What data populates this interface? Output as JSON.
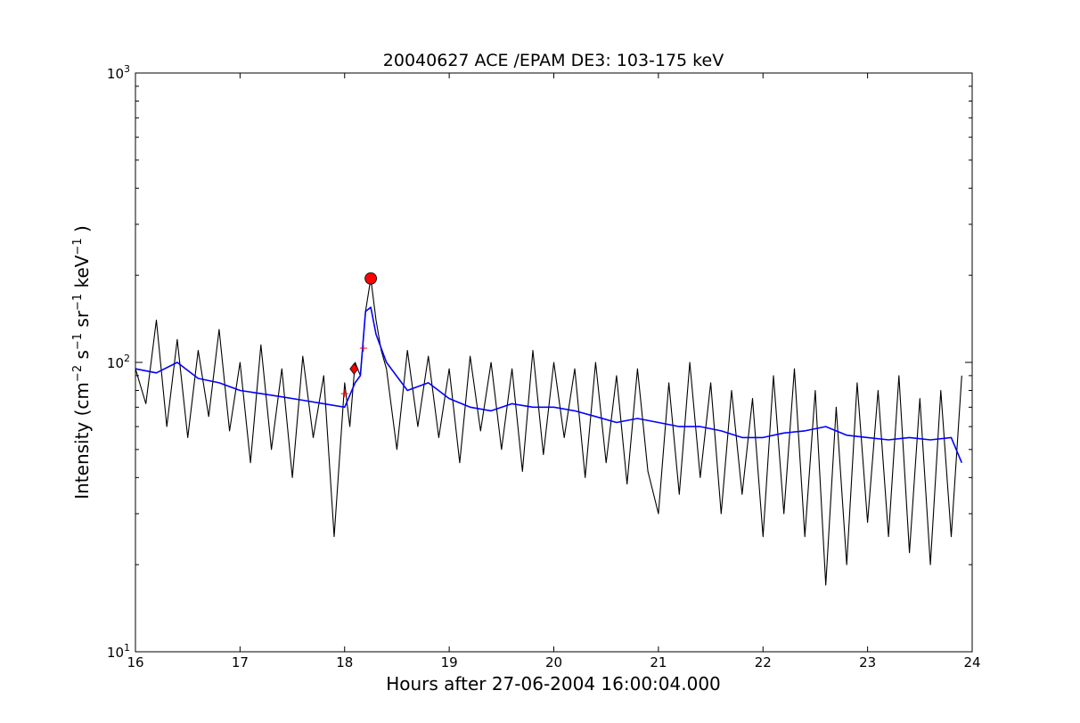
{
  "chart_data": {
    "type": "line",
    "title": "20040627 ACE /EPAM DE3: 103-175 keV",
    "xlabel": "Hours after 27-06-2004 16:00:04.000",
    "ylabel_parts": {
      "prefix": "Intensity (cm",
      "cm_exp": "−2",
      "s": " s",
      "s_exp": "−1",
      "sr": " sr",
      "sr_exp": "−1",
      "kev": " keV",
      "kev_exp": "−1",
      "suffix": " )"
    },
    "xlim": [
      16,
      24
    ],
    "ylim": [
      10,
      1000
    ],
    "yscale": "log",
    "x_ticks": [
      16,
      17,
      18,
      19,
      20,
      21,
      22,
      23,
      24
    ],
    "y_ticks": [
      {
        "value": 10,
        "base": "10",
        "exp": "1"
      },
      {
        "value": 100,
        "base": "10",
        "exp": "2"
      },
      {
        "value": 1000,
        "base": "10",
        "exp": "3"
      }
    ],
    "grid": false,
    "legend": "none",
    "series": [
      {
        "role": "raw",
        "color": "#000000",
        "x": [
          16.0,
          16.1,
          16.2,
          16.3,
          16.4,
          16.5,
          16.6,
          16.7,
          16.8,
          16.9,
          17.0,
          17.1,
          17.2,
          17.3,
          17.4,
          17.5,
          17.6,
          17.7,
          17.8,
          17.9,
          18.0,
          18.05,
          18.1,
          18.15,
          18.2,
          18.25,
          18.3,
          18.35,
          18.4,
          18.5,
          18.6,
          18.7,
          18.8,
          18.9,
          19.0,
          19.1,
          19.2,
          19.3,
          19.4,
          19.5,
          19.6,
          19.7,
          19.8,
          19.9,
          20.0,
          20.1,
          20.2,
          20.3,
          20.4,
          20.5,
          20.6,
          20.7,
          20.8,
          20.9,
          21.0,
          21.1,
          21.2,
          21.3,
          21.4,
          21.5,
          21.6,
          21.7,
          21.8,
          21.9,
          22.0,
          22.1,
          22.2,
          22.3,
          22.4,
          22.5,
          22.6,
          22.7,
          22.8,
          22.9,
          23.0,
          23.1,
          23.2,
          23.3,
          23.4,
          23.5,
          23.6,
          23.7,
          23.8,
          23.9
        ],
        "values": [
          95,
          72,
          140,
          60,
          120,
          55,
          110,
          65,
          130,
          58,
          100,
          45,
          115,
          50,
          95,
          40,
          105,
          55,
          90,
          25,
          85,
          60,
          100,
          90,
          150,
          195,
          140,
          110,
          95,
          50,
          110,
          60,
          105,
          55,
          95,
          45,
          105,
          58,
          100,
          50,
          95,
          42,
          110,
          48,
          100,
          55,
          95,
          40,
          100,
          45,
          90,
          38,
          95,
          42,
          30,
          85,
          35,
          100,
          40,
          85,
          30,
          80,
          35,
          75,
          25,
          90,
          30,
          95,
          25,
          80,
          17,
          70,
          20,
          85,
          28,
          80,
          25,
          90,
          22,
          75,
          20,
          80,
          25,
          90
        ]
      },
      {
        "role": "smoothed",
        "color": "#0000ff",
        "x": [
          16.0,
          16.2,
          16.4,
          16.6,
          16.8,
          17.0,
          17.2,
          17.4,
          17.6,
          17.8,
          18.0,
          18.1,
          18.15,
          18.2,
          18.25,
          18.3,
          18.4,
          18.6,
          18.8,
          19.0,
          19.2,
          19.4,
          19.6,
          19.8,
          20.0,
          20.2,
          20.4,
          20.6,
          20.8,
          21.0,
          21.2,
          21.4,
          21.6,
          21.8,
          22.0,
          22.2,
          22.4,
          22.6,
          22.8,
          23.0,
          23.2,
          23.4,
          23.6,
          23.8,
          23.9
        ],
        "values": [
          95,
          92,
          100,
          88,
          85,
          80,
          78,
          76,
          74,
          72,
          70,
          85,
          90,
          150,
          155,
          125,
          100,
          80,
          85,
          75,
          70,
          68,
          72,
          70,
          70,
          68,
          65,
          62,
          64,
          62,
          60,
          60,
          58,
          55,
          55,
          57,
          58,
          60,
          56,
          55,
          54,
          55,
          54,
          55,
          45
        ]
      }
    ],
    "markers": [
      {
        "shape": "circle",
        "x": 18.25,
        "y": 195,
        "color": "#ff0000"
      },
      {
        "shape": "diamond",
        "x": 18.09,
        "y": 95,
        "color": "#ff0000"
      },
      {
        "shape": "plus",
        "x": 18.0,
        "y": 78,
        "color": "#ff0000"
      },
      {
        "shape": "plus",
        "x": 18.18,
        "y": 112,
        "color": "#ff0000"
      }
    ]
  }
}
